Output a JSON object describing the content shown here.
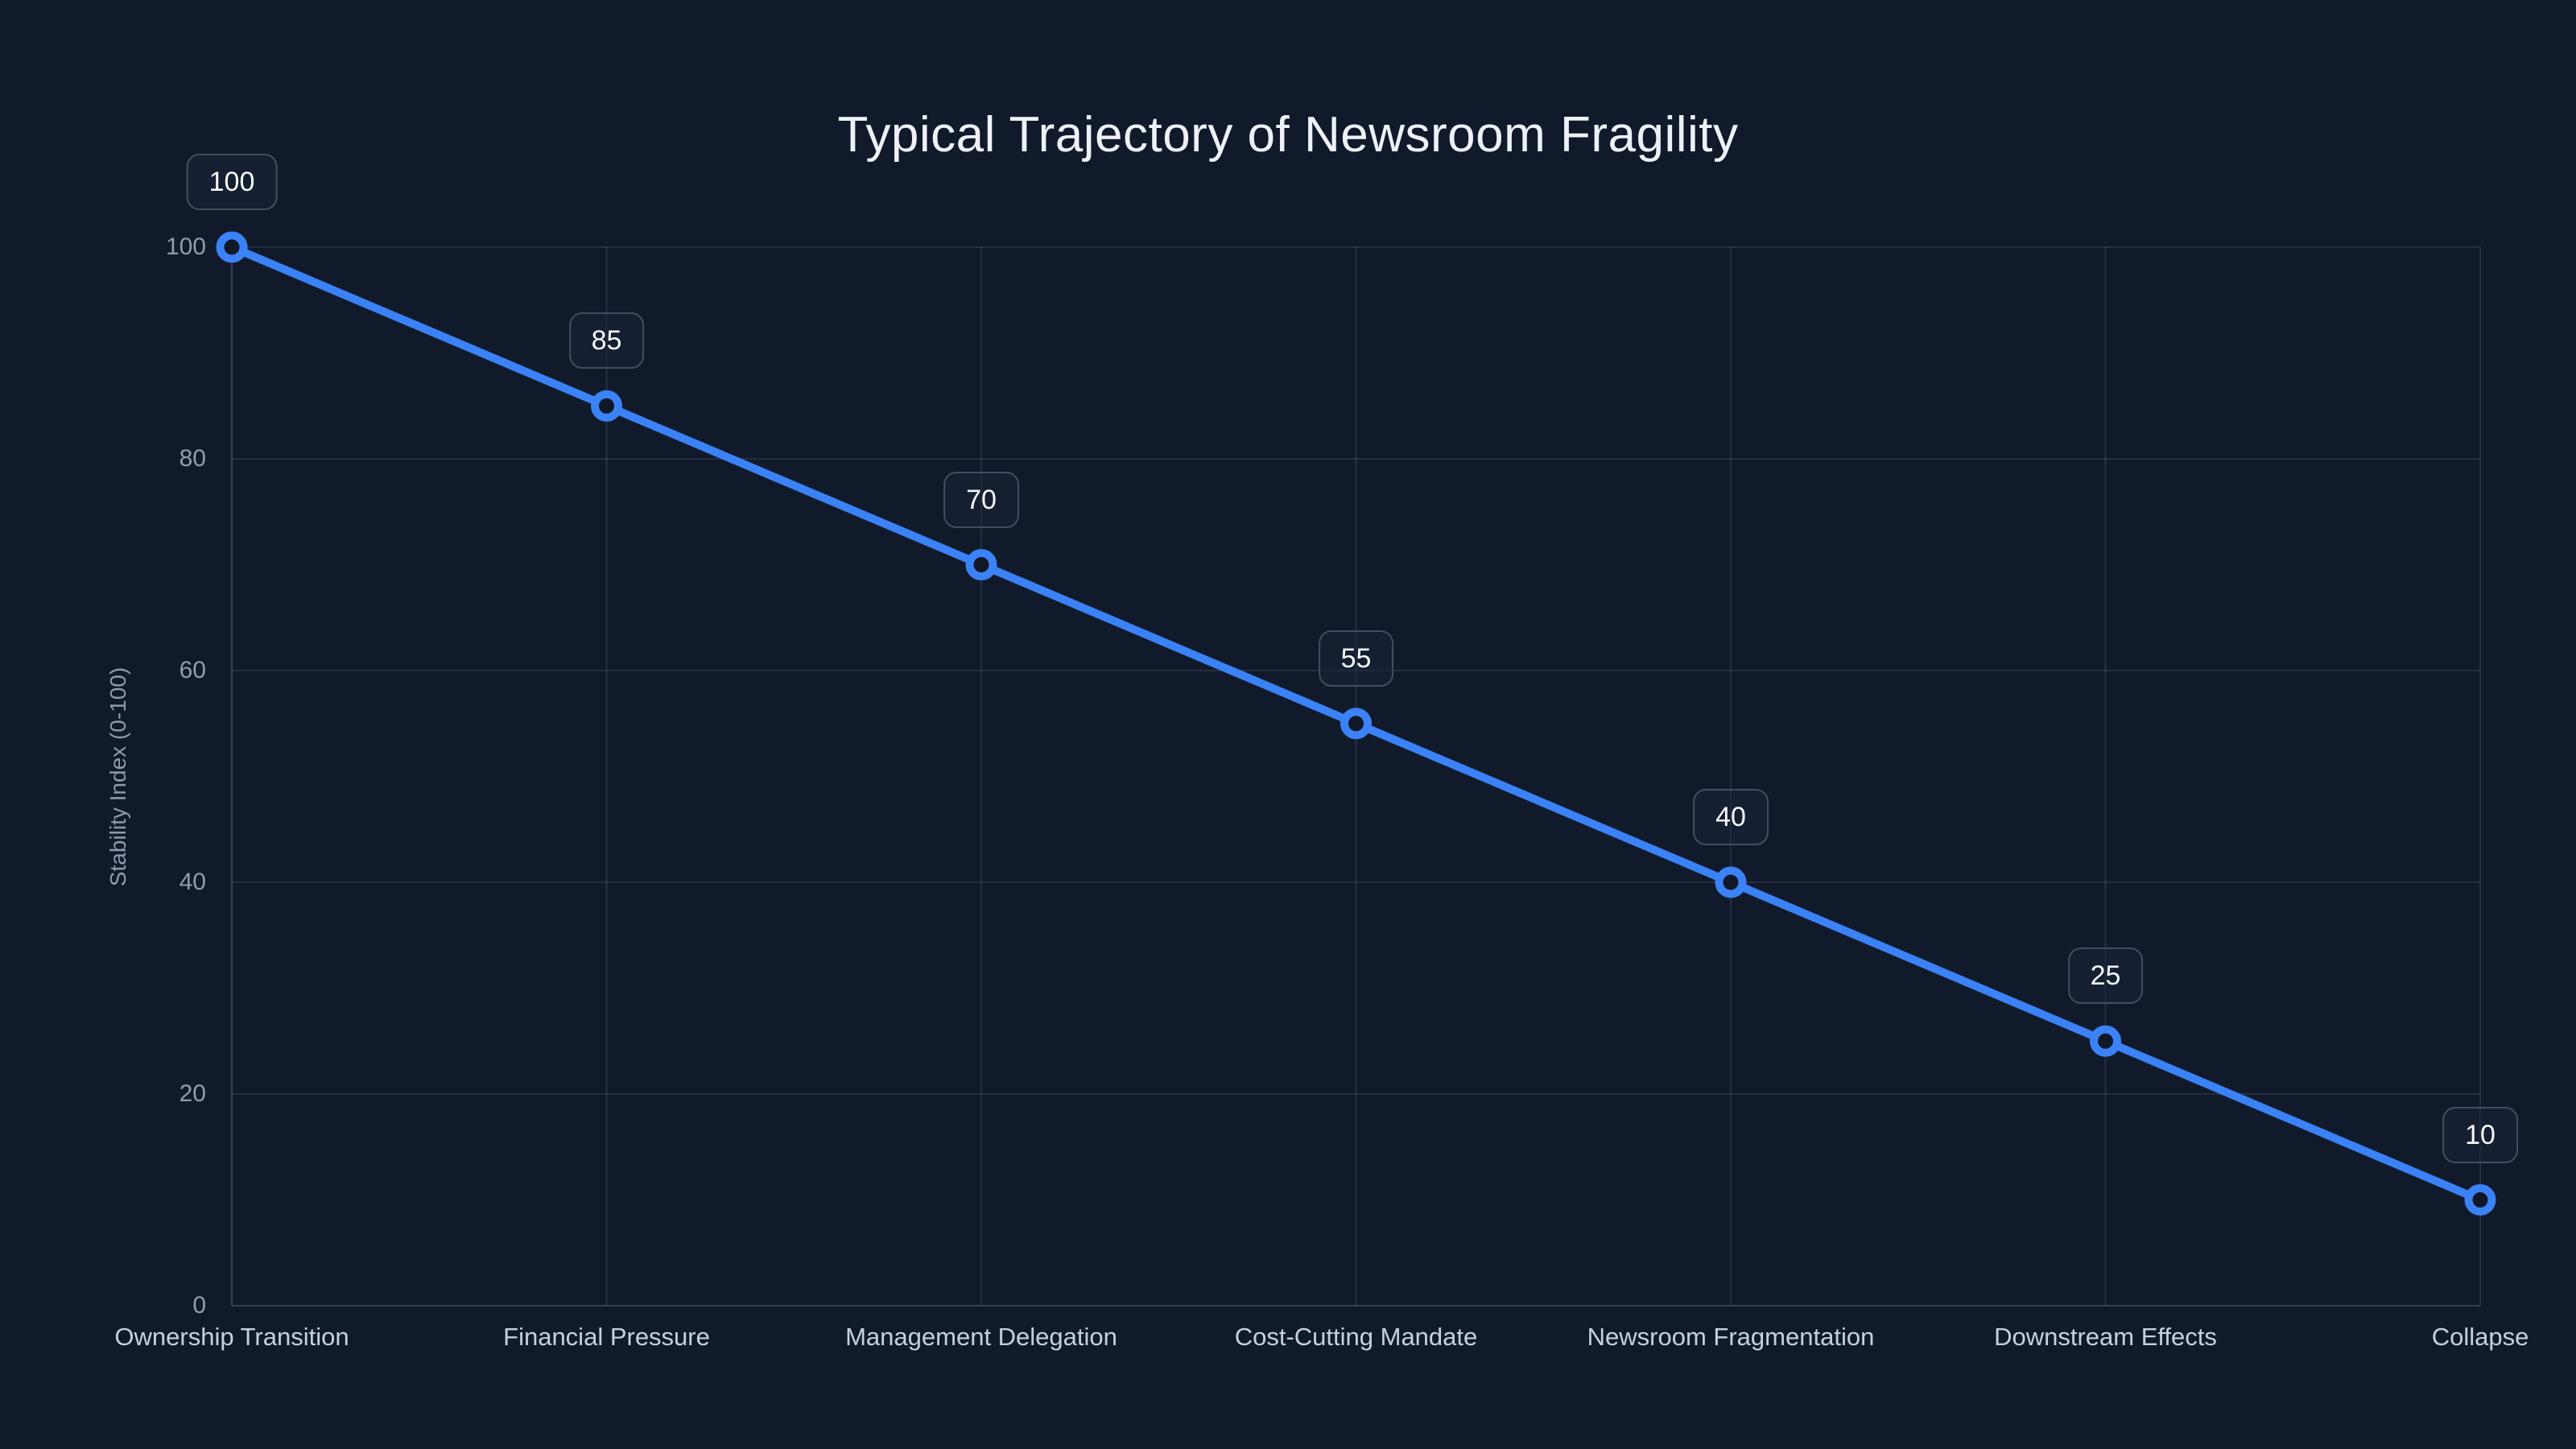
{
  "title": "Typical Trajectory of Newsroom Fragility",
  "chart_data": {
    "type": "line",
    "title": "Typical Trajectory of Newsroom Fragility",
    "categories": [
      "Ownership Transition",
      "Financial Pressure",
      "Management Delegation",
      "Cost-Cutting Mandate",
      "Newsroom Fragmentation",
      "Downstream Effects",
      "Collapse"
    ],
    "values": [
      100,
      85,
      70,
      55,
      40,
      25,
      10
    ],
    "point_labels": [
      "100",
      "85",
      "70",
      "55",
      "40",
      "25",
      "10"
    ],
    "xlabel": "",
    "ylabel": "Stability Index (0-100)",
    "ylim": [
      0,
      100
    ],
    "yticks": [
      0,
      20,
      40,
      60,
      80,
      100
    ],
    "grid": true,
    "legend": false,
    "colors": {
      "background": "#111a2b",
      "line": "#3b82f6",
      "point_fill": "#101828",
      "grid": "rgba(148, 163, 184, 0.16)",
      "axis_line": "rgba(148, 163, 184, 0.28)",
      "tick_label": "#919cb0",
      "category_label": "#c8d0dc",
      "title": "#eef2f8",
      "label_box_border": "#424d62",
      "label_box_text": "#f5f7fa"
    }
  }
}
